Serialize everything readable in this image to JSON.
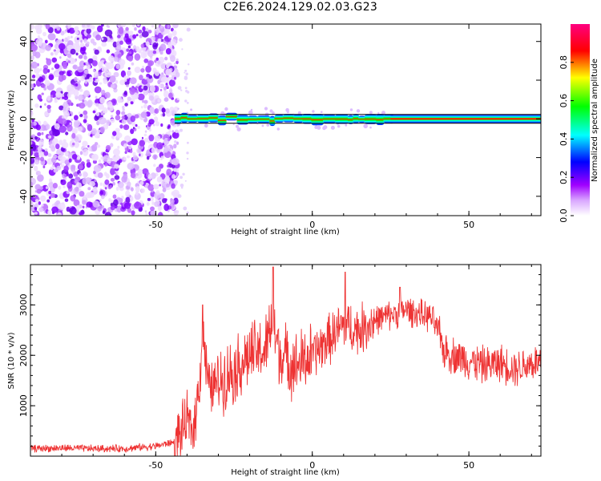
{
  "title": "C2E6.2024.129.02.03.G23",
  "chart_data": [
    {
      "type": "heatmap",
      "name": "spectrogram",
      "xlabel": "Height of straight line (km)",
      "ylabel": "Frequency (Hz)",
      "xlim": [
        -90,
        73
      ],
      "ylim": [
        -50,
        49
      ],
      "xticks": [
        -50,
        0,
        50
      ],
      "yticks": [
        40,
        20,
        0,
        -20,
        -40
      ],
      "noise_region_x": [
        -90,
        -44
      ],
      "signal_band_x": [
        -44,
        73
      ],
      "signal_center_frequency": 0,
      "colorbar": {
        "label": "Normalized spectral amplitude",
        "range": [
          0.0,
          1.0
        ],
        "ticks": [
          0.0,
          0.2,
          0.4,
          0.6,
          0.8
        ],
        "tick_labels": [
          "0.0",
          "0.2",
          "0.4",
          "0.6",
          "0.8"
        ],
        "colors": [
          "#ffffff",
          "#c000ff",
          "#0000ff",
          "#00ffff",
          "#00ff00",
          "#ffff00",
          "#ff0000",
          "#ff0080"
        ]
      }
    },
    {
      "type": "line",
      "name": "snr",
      "xlabel": "Height of straight line (km)",
      "ylabel": "SNR (10 * v/v)",
      "xlim": [
        -90,
        73
      ],
      "ylim": [
        0,
        3800
      ],
      "xticks": [
        -50,
        0,
        50
      ],
      "yticks": [
        1000,
        2000,
        3000
      ],
      "color": "#ee3333",
      "x": [
        -90,
        -80,
        -70,
        -60,
        -50,
        -44,
        -42,
        -40,
        -38,
        -36,
        -35,
        -33,
        -30,
        -25,
        -20,
        -15,
        -13,
        -10,
        -5,
        0,
        5,
        10,
        15,
        20,
        25,
        30,
        35,
        38,
        40,
        42,
        45,
        50,
        55,
        60,
        65,
        70,
        73
      ],
      "y": [
        150,
        160,
        150,
        150,
        200,
        280,
        450,
        700,
        500,
        1500,
        2500,
        1300,
        1500,
        1700,
        2000,
        2100,
        2600,
        2000,
        1800,
        2000,
        2300,
        2600,
        2500,
        2700,
        2800,
        2900,
        2800,
        2750,
        2500,
        2100,
        2000,
        1900,
        1800,
        1850,
        1750,
        1850,
        1850
      ],
      "spikes": [
        {
          "x": -35,
          "y": 3000
        },
        {
          "x": -12.5,
          "y": 3750
        },
        {
          "x": 10.5,
          "y": 3650
        },
        {
          "x": 28,
          "y": 3350
        }
      ]
    }
  ]
}
